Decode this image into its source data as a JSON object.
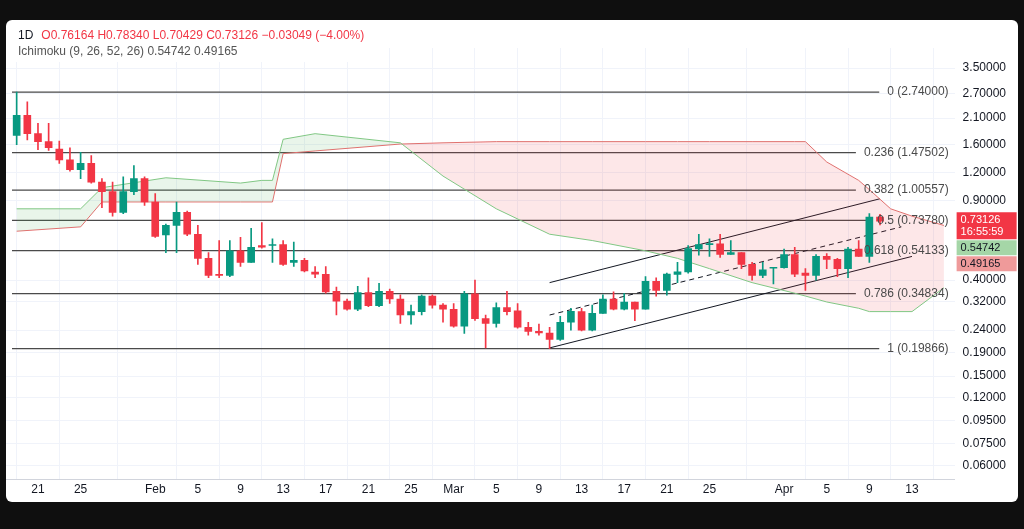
{
  "chart_data": {
    "type": "candlestick",
    "title": "1D",
    "annotations": [
      "O0.76164 H0.78340 L0.70429 C0.73126 −0.03049 (−4.00%)",
      "Ichimoku (9, 26, 52, 26) 0.54742 0.49165",
      "0.73126\n16:55:59",
      "0.54742",
      "0.49165"
    ],
    "x": [
      "--01-19",
      "--01-20",
      "--01-21",
      "--01-22",
      "--01-23",
      "--01-24",
      "--01-25",
      "--01-26",
      "--01-27",
      "--01-28",
      "--01-29",
      "--01-30",
      "--01-31",
      "--02-01",
      "--02-02",
      "--02-03",
      "--02-04",
      "--02-05",
      "--02-06",
      "--02-07",
      "--02-08",
      "--02-09",
      "--02-10",
      "--02-11",
      "--02-12",
      "--02-13",
      "--02-14",
      "--02-15",
      "--02-16",
      "--02-17",
      "--02-18",
      "--02-19",
      "--02-20",
      "--02-21",
      "--02-22",
      "--02-23",
      "--02-24",
      "--02-25",
      "--02-26",
      "--02-27",
      "--02-28",
      "--03-01",
      "--03-02",
      "--03-03",
      "--03-04",
      "--03-05",
      "--03-06",
      "--03-07",
      "--03-08",
      "--03-09",
      "--03-10",
      "--03-11",
      "--03-12",
      "--03-13",
      "--03-14",
      "--03-15",
      "--03-16",
      "--03-17",
      "--03-18",
      "--03-19",
      "--03-20",
      "--03-21",
      "--03-22",
      "--03-23",
      "--03-24",
      "--03-25",
      "--03-26",
      "--03-27",
      "--03-28",
      "--03-29",
      "--03-30",
      "--03-31",
      "--04-01",
      "--04-02",
      "--04-03",
      "--04-04",
      "--04-05",
      "--04-06",
      "--04-07",
      "--04-08",
      "--04-09",
      "--04-10"
    ],
    "ohlc": [
      [
        1.76,
        2.74,
        1.6,
        2.16
      ],
      [
        2.16,
        2.48,
        1.68,
        1.79
      ],
      [
        1.79,
        1.99,
        1.52,
        1.65
      ],
      [
        1.65,
        1.99,
        1.51,
        1.55
      ],
      [
        1.53,
        1.66,
        1.32,
        1.37
      ],
      [
        1.37,
        1.55,
        1.22,
        1.24
      ],
      [
        1.24,
        1.48,
        1.13,
        1.32
      ],
      [
        1.32,
        1.43,
        1.08,
        1.09
      ],
      [
        1.09,
        1.13,
        0.84,
        0.99
      ],
      [
        0.99,
        1.09,
        0.77,
        0.8
      ],
      [
        0.8,
        1.15,
        0.79,
        0.99
      ],
      [
        0.99,
        1.29,
        0.96,
        1.13
      ],
      [
        1.13,
        1.15,
        0.86,
        0.89
      ],
      [
        0.89,
        0.97,
        0.62,
        0.625
      ],
      [
        0.635,
        0.71,
        0.53,
        0.7
      ],
      [
        0.7,
        0.89,
        0.53,
        0.8
      ],
      [
        0.8,
        0.81,
        0.63,
        0.64
      ],
      [
        0.64,
        0.7,
        0.47,
        0.5
      ],
      [
        0.5,
        0.53,
        0.41,
        0.42
      ],
      [
        0.425,
        0.6,
        0.41,
        0.42
      ],
      [
        0.42,
        0.6,
        0.415,
        0.54
      ],
      [
        0.54,
        0.62,
        0.46,
        0.48
      ],
      [
        0.48,
        0.68,
        0.48,
        0.56
      ],
      [
        0.57,
        0.72,
        0.555,
        0.56
      ],
      [
        0.57,
        0.61,
        0.48,
        0.575
      ],
      [
        0.575,
        0.6,
        0.465,
        0.47
      ],
      [
        0.48,
        0.59,
        0.46,
        0.49
      ],
      [
        0.49,
        0.5,
        0.435,
        0.44
      ],
      [
        0.435,
        0.46,
        0.41,
        0.425
      ],
      [
        0.425,
        0.46,
        0.35,
        0.355
      ],
      [
        0.357,
        0.373,
        0.28,
        0.323
      ],
      [
        0.323,
        0.33,
        0.294,
        0.297
      ],
      [
        0.297,
        0.376,
        0.293,
        0.352
      ],
      [
        0.352,
        0.41,
        0.305,
        0.308
      ],
      [
        0.308,
        0.387,
        0.305,
        0.357
      ],
      [
        0.357,
        0.365,
        0.315,
        0.33
      ],
      [
        0.33,
        0.344,
        0.257,
        0.28
      ],
      [
        0.28,
        0.31,
        0.255,
        0.29
      ],
      [
        0.29,
        0.344,
        0.28,
        0.34
      ],
      [
        0.34,
        0.344,
        0.3,
        0.31
      ],
      [
        0.31,
        0.315,
        0.26,
        0.297
      ],
      [
        0.297,
        0.315,
        0.247,
        0.25
      ],
      [
        0.25,
        0.357,
        0.232,
        0.348
      ],
      [
        0.348,
        0.4,
        0.265,
        0.27
      ],
      [
        0.27,
        0.28,
        0.2,
        0.257
      ],
      [
        0.257,
        0.317,
        0.247,
        0.302
      ],
      [
        0.302,
        0.357,
        0.28,
        0.29
      ],
      [
        0.292,
        0.315,
        0.245,
        0.247
      ],
      [
        0.247,
        0.26,
        0.228,
        0.237
      ],
      [
        0.237,
        0.255,
        0.228,
        0.233
      ],
      [
        0.233,
        0.247,
        0.19866,
        0.218
      ],
      [
        0.218,
        0.276,
        0.216,
        0.26
      ],
      [
        0.26,
        0.3,
        0.24,
        0.291
      ],
      [
        0.29,
        0.3,
        0.238,
        0.24
      ],
      [
        0.24,
        0.31,
        0.238,
        0.285
      ],
      [
        0.285,
        0.344,
        0.285,
        0.33
      ],
      [
        0.33,
        0.355,
        0.295,
        0.297
      ],
      [
        0.297,
        0.35,
        0.295,
        0.32
      ],
      [
        0.32,
        0.32,
        0.264,
        0.297
      ],
      [
        0.297,
        0.415,
        0.297,
        0.395
      ],
      [
        0.395,
        0.41,
        0.34,
        0.36
      ],
      [
        0.36,
        0.43,
        0.343,
        0.426
      ],
      [
        0.424,
        0.48,
        0.39,
        0.436
      ],
      [
        0.435,
        0.57,
        0.43,
        0.552
      ],
      [
        0.55,
        0.64,
        0.516,
        0.575
      ],
      [
        0.575,
        0.61,
        0.51,
        0.58
      ],
      [
        0.58,
        0.64,
        0.505,
        0.52
      ],
      [
        0.52,
        0.6,
        0.52,
        0.53
      ],
      [
        0.53,
        0.53,
        0.45,
        0.47
      ],
      [
        0.47,
        0.48,
        0.4,
        0.42
      ],
      [
        0.42,
        0.48,
        0.41,
        0.445
      ],
      [
        0.452,
        0.455,
        0.385,
        0.455
      ],
      [
        0.455,
        0.55,
        0.452,
        0.52
      ],
      [
        0.52,
        0.56,
        0.415,
        0.425
      ],
      [
        0.43,
        0.45,
        0.36,
        0.42
      ],
      [
        0.42,
        0.52,
        0.4,
        0.51
      ],
      [
        0.51,
        0.525,
        0.45,
        0.495
      ],
      [
        0.495,
        0.5,
        0.415,
        0.45
      ],
      [
        0.45,
        0.56,
        0.41,
        0.55
      ],
      [
        0.55,
        0.6,
        0.51,
        0.51
      ],
      [
        0.51,
        0.79,
        0.48,
        0.76164
      ],
      [
        0.76164,
        0.7834,
        0.70429,
        0.73126
      ]
    ],
    "colors": [
      "#089981",
      "#f23645",
      "#f23645",
      "#f23645",
      "#f23645",
      "#f23645",
      "#089981",
      "#f23645",
      "#f23645",
      "#f23645",
      "#089981",
      "#089981",
      "#f23645",
      "#f23645",
      "#089981",
      "#089981",
      "#f23645",
      "#f23645",
      "#f23645",
      "#f23645",
      "#089981",
      "#f23645",
      "#089981",
      "#f23645",
      "#089981",
      "#f23645",
      "#089981",
      "#f23645",
      "#f23645",
      "#f23645",
      "#f23645",
      "#f23645",
      "#089981",
      "#f23645",
      "#089981",
      "#f23645",
      "#f23645",
      "#089981",
      "#089981",
      "#f23645",
      "#f23645",
      "#f23645",
      "#089981",
      "#f23645",
      "#f23645",
      "#089981",
      "#f23645",
      "#f23645",
      "#f23645",
      "#f23645",
      "#f23645",
      "#089981",
      "#089981",
      "#f23645",
      "#089981",
      "#089981",
      "#f23645",
      "#089981",
      "#f23645",
      "#089981",
      "#f23645",
      "#089981",
      "#089981",
      "#089981",
      "#089981",
      "#089981",
      "#f23645",
      "#089981",
      "#f23645",
      "#f23645",
      "#089981",
      "#089981",
      "#089981",
      "#f23645",
      "#f23645",
      "#089981",
      "#f23645",
      "#f23645",
      "#089981",
      "#f23645",
      "#089981",
      "#f23645"
    ],
    "series": [
      {
        "type": "line",
        "color": "#81c784",
        "x": [
          "--01-19",
          "--01-25",
          "--01-27",
          "--02-02",
          "--02-09",
          "--02-11",
          "--02-12",
          "--02-13",
          "--02-16",
          "--02-24",
          "--02-28",
          "--03-05",
          "--03-10",
          "--03-14",
          "--03-19",
          "--03-22",
          "--03-25",
          "--03-29",
          "--04-02",
          "--04-03",
          "--04-05",
          "--04-08",
          "--04-09",
          "--04-11",
          "--04-13",
          "--04-16"
        ],
        "values": [
          0.83,
          0.83,
          1.03,
          1.14,
          1.08,
          1.11,
          1.11,
          1.69,
          1.79,
          1.63,
          1.16,
          0.83,
          0.64,
          0.6,
          0.54,
          0.5,
          0.45,
          0.39,
          0.35,
          0.34,
          0.32,
          0.3,
          0.29,
          0.29,
          0.29,
          0.37
        ]
      },
      {
        "type": "line",
        "color": "#e57373",
        "x": [
          "--01-19",
          "--01-25",
          "--01-27",
          "--02-02",
          "--02-09",
          "--02-11",
          "--02-12",
          "--02-13",
          "--02-16",
          "--02-24",
          "--02-28",
          "--03-05",
          "--03-10",
          "--03-14",
          "--03-19",
          "--03-22",
          "--03-25",
          "--03-29",
          "--04-02",
          "--04-03",
          "--04-05",
          "--04-08",
          "--04-09",
          "--04-11",
          "--04-13",
          "--04-16"
        ],
        "values": [
          0.66,
          0.69,
          0.89,
          0.89,
          0.89,
          0.89,
          0.89,
          1.46,
          1.5,
          1.61,
          1.63,
          1.65,
          1.65,
          1.65,
          1.65,
          1.65,
          1.65,
          1.65,
          1.65,
          1.65,
          1.34,
          1.11,
          1.01,
          0.83,
          0.77,
          0.7
        ]
      },
      {
        "type": "line",
        "color": "#131722",
        "line_style": "solid",
        "x": [
          "--03-10",
          "--04-13"
        ],
        "values": [
          0.2,
          0.51
        ]
      },
      {
        "type": "line",
        "color": "#131722",
        "line_style": "solid",
        "x": [
          "--03-10",
          "--04-10"
        ],
        "values": [
          0.39,
          0.92
        ]
      },
      {
        "type": "line",
        "color": "#131722",
        "line_style": "dashed",
        "x": [
          "--03-10",
          "--04-12"
        ],
        "values": [
          0.28,
          0.69
        ]
      }
    ],
    "ref_lines": [
      {
        "axis": "y",
        "value": 2.74,
        "label": "0 (2.74000)",
        "color": "#4a4a4a"
      },
      {
        "axis": "y",
        "value": 1.47502,
        "label": "0.236 (1.47502)",
        "color": "#4a4a4a"
      },
      {
        "axis": "y",
        "value": 1.00557,
        "label": "0.382 (1.00557)",
        "color": "#4a4a4a"
      },
      {
        "axis": "y",
        "value": 0.7378,
        "label": "0.5 (0.73780)",
        "color": "#4a4a4a"
      },
      {
        "axis": "y",
        "value": 0.54133,
        "label": "0.618 (0.54133)",
        "color": "#4a4a4a"
      },
      {
        "axis": "y",
        "value": 0.34834,
        "label": "0.786 (0.34834)",
        "color": "#4a4a4a"
      },
      {
        "axis": "y",
        "value": 0.19866,
        "label": "1 (0.19866)",
        "color": "#4a4a4a"
      }
    ],
    "log": "y",
    "grid": true,
    "marker": "none",
    "xlim": [
      "--01-18",
      "--04-17"
    ],
    "xticks": [
      {
        "value": "--01-21",
        "label": "21"
      },
      {
        "value": "--01-25",
        "label": "25"
      },
      {
        "value": "--02-01",
        "label": "Feb"
      },
      {
        "value": "--02-05",
        "label": "5"
      },
      {
        "value": "--02-09",
        "label": "9"
      },
      {
        "value": "--02-13",
        "label": "13"
      },
      {
        "value": "--02-17",
        "label": "17"
      },
      {
        "value": "--02-21",
        "label": "21"
      },
      {
        "value": "--02-25",
        "label": "25"
      },
      {
        "value": "--03-01",
        "label": "Mar"
      },
      {
        "value": "--03-05",
        "label": "5"
      },
      {
        "value": "--03-09",
        "label": "9"
      },
      {
        "value": "--03-13",
        "label": "13"
      },
      {
        "value": "--03-17",
        "label": "17"
      },
      {
        "value": "--03-21",
        "label": "21"
      },
      {
        "value": "--03-25",
        "label": "25"
      },
      {
        "value": "--04-01",
        "label": "Apr"
      },
      {
        "value": "--04-05",
        "label": "5"
      },
      {
        "value": "--04-09",
        "label": "9"
      },
      {
        "value": "--04-13",
        "label": "13"
      }
    ],
    "ylim": [
      0.052,
      4.3
    ],
    "yticks": [
      {
        "value": 0.06,
        "label": "0.06000"
      },
      {
        "value": 0.075,
        "label": "0.07500"
      },
      {
        "value": 0.095,
        "label": "0.09500"
      },
      {
        "value": 0.12,
        "label": "0.12000"
      },
      {
        "value": 0.15,
        "label": "0.15000"
      },
      {
        "value": 0.19,
        "label": "0.19000"
      },
      {
        "value": 0.24,
        "label": "0.24000"
      },
      {
        "value": 0.32,
        "label": "0.32000"
      },
      {
        "value": 0.4,
        "label": "0.40000"
      },
      {
        "value": 0.9,
        "label": "0.90000"
      },
      {
        "value": 1.2,
        "label": "1.20000"
      },
      {
        "value": 1.6,
        "label": "1.60000"
      },
      {
        "value": 2.1,
        "label": "2.10000"
      },
      {
        "value": 2.7,
        "label": "2.70000"
      },
      {
        "value": 3.5,
        "label": "3.50000"
      }
    ]
  }
}
